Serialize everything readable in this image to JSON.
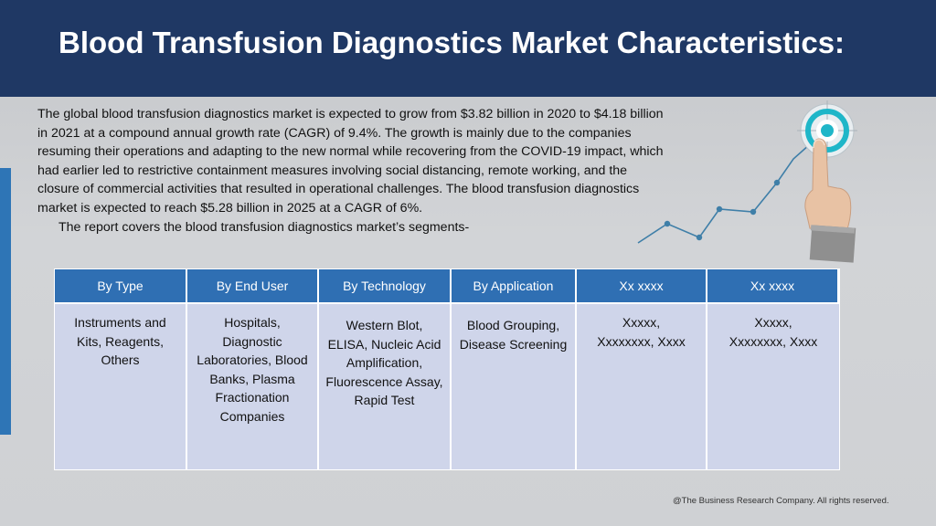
{
  "header": {
    "title": "Blood Transfusion Diagnostics Market Characteristics:"
  },
  "intro": {
    "paragraph": "The global blood transfusion diagnostics market is expected to grow from $3.82 billion in 2020 to $4.18 billion in 2021 at a compound annual growth rate (CAGR) of 9.4%. The growth is mainly due to the companies resuming their operations and adapting to the new normal while recovering from the COVID-19 impact, which had earlier led to restrictive containment measures involving social distancing, remote working, and the closure of commercial activities that resulted in operational challenges. The blood transfusion diagnostics market is expected to reach $5.28 billion in 2025 at a CAGR of 6%.",
    "segments_line": "The report covers the blood transfusion diagnostics market’s segments-"
  },
  "table": {
    "headers": [
      "By Type",
      "By End User",
      "By Technology",
      "By Application",
      "Xx xxxx",
      "Xx xxxx"
    ],
    "cells": [
      "Instruments and Kits, Reagents, Others",
      "Hospitals, Diagnostic Laboratories, Blood Banks, Plasma Fractionation Companies",
      "Western Blot, ELISA, Nucleic Acid Amplification, Fluorescence Assay, Rapid Test",
      "Blood Grouping, Disease Screening",
      "Xxxxx, Xxxxxxxx, Xxxx",
      "Xxxxx, Xxxxxxxx, Xxxx"
    ]
  },
  "footer": {
    "copyright": "@The Business Research Company. All rights reserved."
  },
  "colors": {
    "header_bg": "#1f3864",
    "table_header_bg": "#2f6fb3",
    "table_cell_bg": "#cfd5ea",
    "accent_bar": "#2e75b6",
    "graph_line": "#3f7fa8",
    "target_ring": "#1fb6c8"
  },
  "icons": [
    "growth-line-chart-icon",
    "target-icon",
    "pointing-hand-icon"
  ]
}
